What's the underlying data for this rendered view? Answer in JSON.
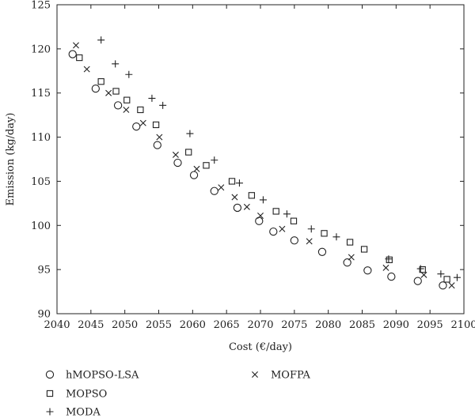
{
  "chart_data": {
    "type": "scatter",
    "title": "",
    "xlabel": "Cost (€/day)",
    "ylabel": "Emission (kg/day)",
    "xlim": [
      2040,
      2100
    ],
    "ylim": [
      90,
      125
    ],
    "xticks": [
      2040,
      2045,
      2050,
      2055,
      2060,
      2065,
      2070,
      2075,
      2080,
      2085,
      2090,
      2095,
      2100
    ],
    "yticks": [
      90,
      95,
      100,
      105,
      110,
      115,
      120,
      125
    ],
    "grid": false,
    "legend_position": "bottom",
    "series": [
      {
        "name": "hMOPSO-LSA",
        "marker": "circle",
        "x": [
          2042.3,
          2045.7,
          2049.0,
          2051.7,
          2054.8,
          2057.8,
          2060.2,
          2063.2,
          2066.6,
          2069.8,
          2071.9,
          2075.0,
          2079.1,
          2082.8,
          2085.8,
          2089.3,
          2093.2,
          2096.9
        ],
        "y": [
          119.4,
          115.5,
          113.6,
          111.2,
          109.1,
          107.1,
          105.7,
          103.9,
          102.0,
          100.5,
          99.3,
          98.3,
          97.0,
          95.8,
          94.9,
          94.2,
          93.7,
          93.2
        ]
      },
      {
        "name": "MOPSO",
        "marker": "square",
        "x": [
          2043.3,
          2046.5,
          2048.7,
          2050.3,
          2052.3,
          2054.6,
          2059.4,
          2062.0,
          2065.8,
          2068.7,
          2072.3,
          2074.9,
          2079.4,
          2083.2,
          2085.3,
          2089.0,
          2093.9,
          2097.5
        ],
        "y": [
          119.0,
          116.3,
          115.2,
          114.2,
          113.1,
          111.4,
          108.3,
          106.8,
          105.0,
          103.4,
          101.6,
          100.5,
          99.1,
          98.1,
          97.3,
          96.1,
          95.0,
          93.9
        ]
      },
      {
        "name": "MODA",
        "marker": "plus",
        "x": [
          2046.5,
          2048.6,
          2050.6,
          2054.0,
          2055.6,
          2059.6,
          2063.2,
          2066.9,
          2070.4,
          2073.9,
          2077.5,
          2081.2,
          2088.9,
          2093.6,
          2096.6,
          2099.0
        ],
        "y": [
          121.0,
          118.3,
          117.1,
          114.4,
          113.6,
          110.4,
          107.4,
          104.8,
          102.9,
          101.3,
          99.6,
          98.7,
          96.2,
          95.1,
          94.5,
          94.1
        ]
      },
      {
        "name": "MOFPA",
        "marker": "x",
        "x": [
          2042.8,
          2044.4,
          2047.6,
          2050.2,
          2052.7,
          2055.1,
          2057.5,
          2060.6,
          2064.2,
          2066.2,
          2068.0,
          2070.0,
          2073.2,
          2077.2,
          2083.4,
          2088.5,
          2094.1,
          2098.2
        ],
        "y": [
          120.4,
          117.7,
          115.0,
          113.1,
          111.6,
          110.0,
          108.0,
          106.4,
          104.3,
          103.2,
          102.1,
          101.1,
          99.6,
          98.2,
          96.4,
          95.2,
          94.4,
          93.2
        ]
      }
    ]
  }
}
